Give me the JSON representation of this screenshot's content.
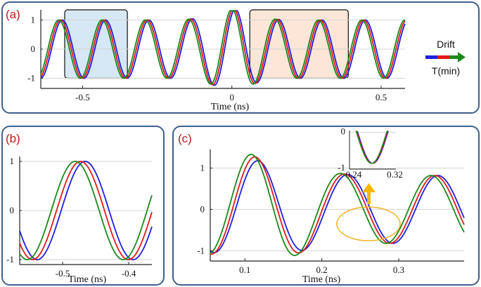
{
  "colors": {
    "frame": "#3d5f8e",
    "label": "#c21a1a",
    "blue": "#1f1fe0",
    "red": "#e01a1a",
    "green": "#1a8a1a",
    "grid": "#d3d3d3",
    "box_blue": "#d6e8f5",
    "box_orange": "#fbe6d8",
    "ellipse": "#f0b429",
    "arrow": "#f5b800"
  },
  "legend": {
    "top": "Drift",
    "bottom": "T(min)"
  },
  "chart_data": [
    {
      "panel": "(a)",
      "type": "line",
      "xlabel": "Time (ns)",
      "ylabel": "",
      "xlim": [
        -0.64,
        0.58
      ],
      "ylim": [
        -1.35,
        1.35
      ],
      "xticks": [
        -0.5,
        0,
        0.5
      ],
      "xtick_labels": [
        "-0.5",
        "0",
        "0.5"
      ],
      "yticks": [
        -1,
        0,
        1
      ],
      "ytick_labels": [
        "-1",
        "0",
        "1"
      ],
      "grid": "horizontal",
      "period_ns": 0.145,
      "center_ns": 0.0,
      "series": [
        {
          "color": "blue",
          "shift_ns": 0.012
        },
        {
          "color": "red",
          "shift_ns": 0.006
        },
        {
          "color": "green",
          "shift_ns": 0.0
        }
      ],
      "highlights": [
        {
          "x": [
            -0.56,
            -0.35
          ],
          "y": [
            -1.0,
            1.35
          ],
          "fill": "box_blue"
        },
        {
          "x": [
            0.06,
            0.39
          ],
          "y": [
            -1.0,
            1.35
          ],
          "fill": "box_orange"
        }
      ]
    },
    {
      "panel": "(b)",
      "type": "line",
      "xlabel": "Time (ns)",
      "ylabel": "",
      "xlim": [
        -0.565,
        -0.365
      ],
      "ylim": [
        -1.1,
        1.1
      ],
      "xticks": [
        -0.5,
        -0.4
      ],
      "xtick_labels": [
        "-0.5",
        "-0.4"
      ],
      "yticks": [
        -1,
        0,
        1
      ],
      "ytick_labels": [
        "-1",
        "0",
        "1"
      ],
      "grid": "horizontal",
      "period_ns": 0.145,
      "series": [
        {
          "color": "blue",
          "peak_ns": -0.466
        },
        {
          "color": "red",
          "peak_ns": -0.473
        },
        {
          "color": "green",
          "peak_ns": -0.481
        }
      ]
    },
    {
      "panel": "(c)",
      "type": "line",
      "xlabel": "Time (ns)",
      "ylabel": "",
      "xlim": [
        0.055,
        0.385
      ],
      "ylim": [
        -1.25,
        1.45
      ],
      "xticks": [
        0.1,
        0.2,
        0.3
      ],
      "xtick_labels": [
        "0.1",
        "0.2",
        "0.3"
      ],
      "yticks": [
        -1,
        0,
        1
      ],
      "ytick_labels": [
        "-1",
        "0",
        "1"
      ],
      "grid": "horizontal",
      "period_ns": 0.117,
      "series": [
        {
          "color": "blue",
          "peak_ns": 0.117,
          "amplitude_first": 1.18
        },
        {
          "color": "red",
          "peak_ns": 0.113,
          "amplitude_first": 1.27
        },
        {
          "color": "green",
          "peak_ns": 0.108,
          "amplitude_first": 1.33
        }
      ],
      "inset": {
        "type": "line",
        "xlim": [
          0.232,
          0.322
        ],
        "ylim": [
          -1.02,
          0.05
        ],
        "xticks": [
          0.24,
          0.32
        ],
        "xtick_labels": [
          "0.24",
          "0.32"
        ],
        "yticks": [
          -1,
          0
        ],
        "ytick_labels": [
          "-1",
          "0"
        ],
        "minimum_ns": 0.276
      }
    }
  ]
}
